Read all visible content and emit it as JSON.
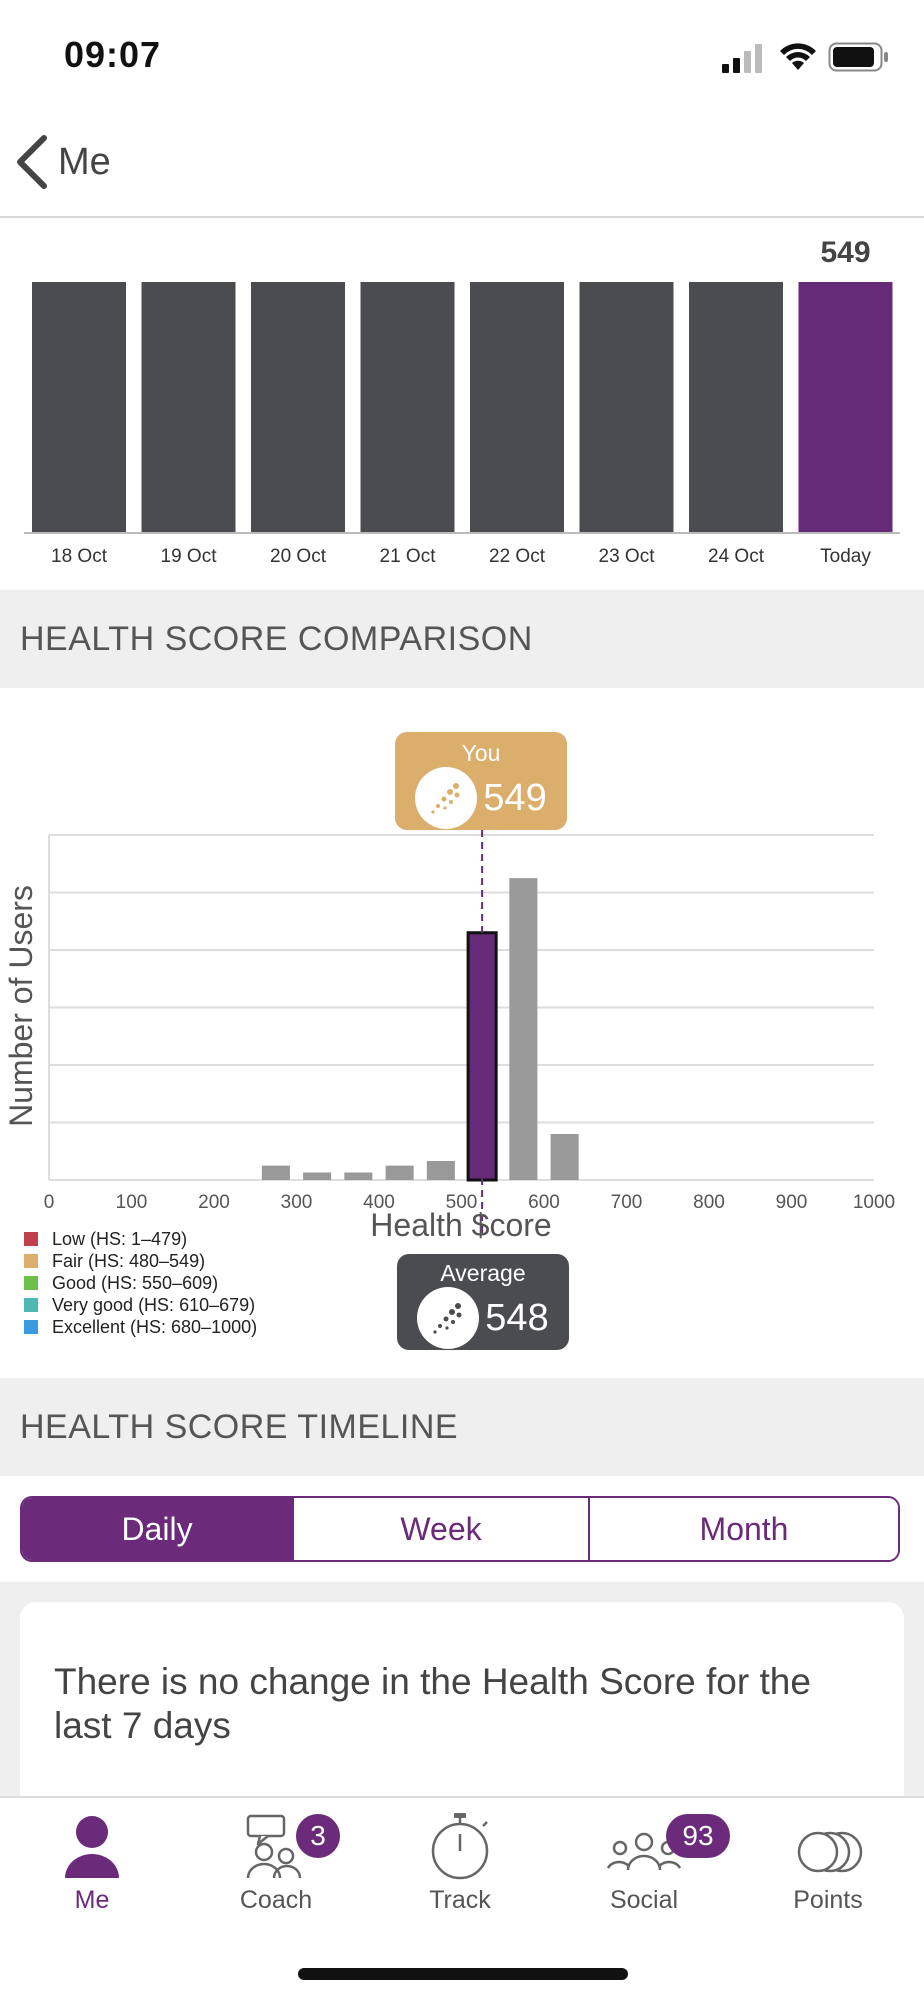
{
  "status_bar": {
    "time": "09:07"
  },
  "nav": {
    "back_label": "Me"
  },
  "daily_chart_data": {
    "type": "bar",
    "categories": [
      "18 Oct",
      "19 Oct",
      "20 Oct",
      "21 Oct",
      "22 Oct",
      "23 Oct",
      "24 Oct",
      "Today"
    ],
    "values": [
      549,
      549,
      549,
      549,
      549,
      549,
      549,
      549
    ],
    "highlight_index": 7,
    "value_label": "549",
    "colors": {
      "default": "#4b4c50",
      "highlight": "#662b78"
    }
  },
  "comparison": {
    "header": "HEALTH SCORE COMPARISON",
    "you": {
      "title": "You",
      "value": "549"
    },
    "average": {
      "title": "Average",
      "value": "548"
    },
    "legend": [
      {
        "label": "Low (HS: 1–479)",
        "color": "#c0404e"
      },
      {
        "label": "Fair (HS: 480–549)",
        "color": "#dbae6c"
      },
      {
        "label": "Good (HS: 550–609)",
        "color": "#6cc04a"
      },
      {
        "label": "Very good (HS: 610–679)",
        "color": "#4fb8b0"
      },
      {
        "label": "Excellent (HS: 680–1000)",
        "color": "#3a9be0"
      }
    ]
  },
  "chart_data": {
    "type": "bar",
    "xlabel": "Health $core",
    "ylabel": "Number of Users",
    "xlim": [
      0,
      1000
    ],
    "xticks": [
      0,
      100,
      200,
      300,
      400,
      500,
      600,
      700,
      800,
      900,
      1000
    ],
    "ylim": [
      0,
      6
    ],
    "grid": true,
    "bin_width": 50,
    "bins": [
      {
        "x": 275,
        "value": 0.25
      },
      {
        "x": 325,
        "value": 0.13
      },
      {
        "x": 375,
        "value": 0.13
      },
      {
        "x": 425,
        "value": 0.25
      },
      {
        "x": 475,
        "value": 0.33
      },
      {
        "x": 525,
        "value": 4.3,
        "highlight": true
      },
      {
        "x": 575,
        "value": 5.25
      },
      {
        "x": 625,
        "value": 0.8
      }
    ],
    "marker_x": 525,
    "colors": {
      "bar": "#999999",
      "highlight": "#662b78"
    }
  },
  "timeline": {
    "header": "HEALTH SCORE TIMELINE",
    "segments": [
      "Daily",
      "Week",
      "Month"
    ],
    "active_segment": 0,
    "message": "There is no change in the Health Score for the last 7 days"
  },
  "tabs": [
    {
      "label": "Me",
      "icon": "person-icon",
      "active": true
    },
    {
      "label": "Coach",
      "icon": "coach-icon",
      "badge": "3"
    },
    {
      "label": "Track",
      "icon": "stopwatch-icon"
    },
    {
      "label": "Social",
      "icon": "group-icon",
      "badge": "93"
    },
    {
      "label": "Points",
      "icon": "coins-icon"
    }
  ],
  "accent_color": "#6b2a7a"
}
